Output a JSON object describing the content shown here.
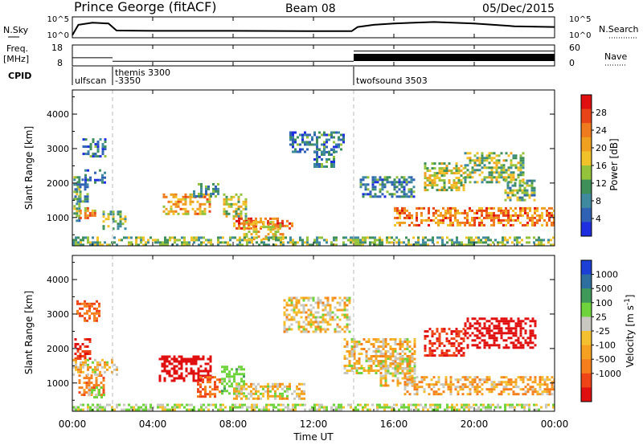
{
  "header": {
    "station": "Prince George (fitACF)",
    "beam": "Beam 08",
    "date": "05/Dec/2015"
  },
  "top_panels": {
    "nsky_label": "N.Sky",
    "nsky_ticks": [
      "10^5",
      "10^0"
    ],
    "nsearch_label": "N.Search",
    "nsearch_ticks": [
      "10^5",
      "10^0"
    ],
    "freq_label_1": "Freq.",
    "freq_label_2": "[MHz]",
    "freq_ticks": [
      "18",
      "8"
    ],
    "nave_label": "Nave",
    "nave_ticks": [
      "60",
      "0"
    ],
    "cpid_label": "CPID"
  },
  "cpid_segments": [
    {
      "start_hour": 0.0,
      "label": "ulfscan",
      "label2": ""
    },
    {
      "start_hour": 2.0,
      "label": "themis 3300",
      "label2": "-3350"
    },
    {
      "start_hour": 14.0,
      "label": "twofsound 3503",
      "label2": ""
    }
  ],
  "time_axis": {
    "title": "Time UT",
    "ticks": [
      "00:00",
      "04:00",
      "08:00",
      "12:00",
      "16:00",
      "20:00",
      "00:00"
    ]
  },
  "chart_data": [
    {
      "type": "heatmap",
      "title": "",
      "xlabel": "Time UT",
      "ylabel": "Slant Range [km]",
      "x_range_hours": [
        0,
        24
      ],
      "ylim": [
        180,
        4700
      ],
      "yticks": [
        1000,
        2000,
        3000,
        4000
      ],
      "colorbar": {
        "label": "Power [dB]",
        "ticks": [
          "4",
          "8",
          "12",
          "16",
          "20",
          "24",
          "28"
        ],
        "colors": [
          "#1f2fe0",
          "#2f62b5",
          "#3f8a9f",
          "#3f8f5a",
          "#94c23a",
          "#f2c22a",
          "#f0a020",
          "#f07b1e",
          "#e94418",
          "#e01010"
        ]
      },
      "regions": [
        {
          "t": [
            0.05,
            0.4
          ],
          "r": [
            900,
            2200
          ],
          "v": 13
        },
        {
          "t": [
            0.35,
            1.1
          ],
          "r": [
            1000,
            1300
          ],
          "v": 22
        },
        {
          "t": [
            0.1,
            0.8
          ],
          "r": [
            1500,
            2200
          ],
          "v": 11
        },
        {
          "t": [
            0.6,
            1.6
          ],
          "r": [
            2000,
            2400
          ],
          "v": 8
        },
        {
          "t": [
            0.5,
            1.6
          ],
          "r": [
            2800,
            3300
          ],
          "v": 9
        },
        {
          "t": [
            1.5,
            2.7
          ],
          "r": [
            650,
            1200
          ],
          "v": 14
        },
        {
          "t": [
            4.5,
            6.8
          ],
          "r": [
            1100,
            1700
          ],
          "v": 21
        },
        {
          "t": [
            6.0,
            7.3
          ],
          "r": [
            1600,
            2000
          ],
          "v": 11
        },
        {
          "t": [
            7.5,
            8.6
          ],
          "r": [
            950,
            1700
          ],
          "v": 16
        },
        {
          "t": [
            8.0,
            11.0
          ],
          "r": [
            700,
            1000
          ],
          "v": 25
        },
        {
          "t": [
            8.5,
            10.5
          ],
          "r": [
            400,
            900
          ],
          "v": 20
        },
        {
          "t": [
            10.8,
            13.5
          ],
          "r": [
            2900,
            3500
          ],
          "v": 9
        },
        {
          "t": [
            12.0,
            13.0
          ],
          "r": [
            2500,
            3000
          ],
          "v": 9
        },
        {
          "t": [
            14.3,
            17.0
          ],
          "r": [
            1600,
            2200
          ],
          "v": 10
        },
        {
          "t": [
            16.0,
            24.0
          ],
          "r": [
            750,
            1300
          ],
          "v": 24
        },
        {
          "t": [
            17.5,
            19.5
          ],
          "r": [
            1800,
            2600
          ],
          "v": 17
        },
        {
          "t": [
            19.5,
            22.5
          ],
          "r": [
            2000,
            2900
          ],
          "v": 15
        },
        {
          "t": [
            21.5,
            23.0
          ],
          "r": [
            1500,
            2100
          ],
          "v": 12
        },
        {
          "t": [
            0.0,
            24.0
          ],
          "r": [
            180,
            450
          ],
          "v": 14
        }
      ]
    },
    {
      "type": "heatmap",
      "title": "",
      "xlabel": "Time UT",
      "ylabel": "Slant Range [km]",
      "x_range_hours": [
        0,
        24
      ],
      "ylim": [
        180,
        4700
      ],
      "yticks": [
        1000,
        2000,
        3000,
        4000
      ],
      "colorbar": {
        "label": "Velocity [m s^-1]",
        "ticks": [
          "1000",
          "500",
          "100",
          "25",
          "-25",
          "-100",
          "-500",
          "-1000"
        ],
        "colors": [
          "#1c3fd6",
          "#2f6f9f",
          "#3f9a5a",
          "#6fd33c",
          "#c8c8c0",
          "#f5c030",
          "#f5a020",
          "#f57f1d",
          "#ef4418",
          "#e01010"
        ]
      },
      "regions": [
        {
          "t": [
            0.1,
            0.9
          ],
          "r": [
            1700,
            2300
          ],
          "v": -500
        },
        {
          "t": [
            0.3,
            1.6
          ],
          "r": [
            650,
            1250
          ],
          "v": -200
        },
        {
          "t": [
            0.0,
            2.2
          ],
          "r": [
            1250,
            1700
          ],
          "v": 0
        },
        {
          "t": [
            0.2,
            1.4
          ],
          "r": [
            2800,
            3400
          ],
          "v": -300
        },
        {
          "t": [
            0.8,
            1.6
          ],
          "r": [
            600,
            900
          ],
          "v": 150
        },
        {
          "t": [
            4.3,
            6.9
          ],
          "r": [
            1100,
            1800
          ],
          "v": -700
        },
        {
          "t": [
            6.2,
            7.4
          ],
          "r": [
            600,
            1200
          ],
          "v": -300
        },
        {
          "t": [
            7.4,
            8.5
          ],
          "r": [
            700,
            1500
          ],
          "v": 200
        },
        {
          "t": [
            8.0,
            11.5
          ],
          "r": [
            550,
            1000
          ],
          "v": 0
        },
        {
          "t": [
            10.5,
            13.8
          ],
          "r": [
            2500,
            3500
          ],
          "v": 0
        },
        {
          "t": [
            13.5,
            17.0
          ],
          "r": [
            1300,
            2300
          ],
          "v": 0
        },
        {
          "t": [
            15.3,
            17.0
          ],
          "r": [
            900,
            1800
          ],
          "v": 0
        },
        {
          "t": [
            16.5,
            24.0
          ],
          "r": [
            700,
            1200
          ],
          "v": -60
        },
        {
          "t": [
            17.5,
            19.5
          ],
          "r": [
            1800,
            2600
          ],
          "v": -500
        },
        {
          "t": [
            19.5,
            23.0
          ],
          "r": [
            2000,
            2900
          ],
          "v": -750
        },
        {
          "t": [
            0.0,
            24.0
          ],
          "r": [
            180,
            400
          ],
          "v": 100
        }
      ]
    }
  ],
  "nsky_data": {
    "hours": [
      0.0,
      0.3,
      1.0,
      1.8,
      2.2,
      4.0,
      8.0,
      12.0,
      13.9,
      14.2,
      15.0,
      16.0,
      18.0,
      20.0,
      22.0,
      24.0
    ],
    "log10_values": [
      0.3,
      3.2,
      3.8,
      3.6,
      1.6,
      1.5,
      1.5,
      1.4,
      1.4,
      2.6,
      3.2,
      3.6,
      4.0,
      3.6,
      2.8,
      2.6
    ]
  },
  "nave_data": {
    "hours": [
      0.0,
      2.0,
      14.0,
      24.0
    ],
    "values": [
      22,
      10,
      45,
      45
    ]
  }
}
